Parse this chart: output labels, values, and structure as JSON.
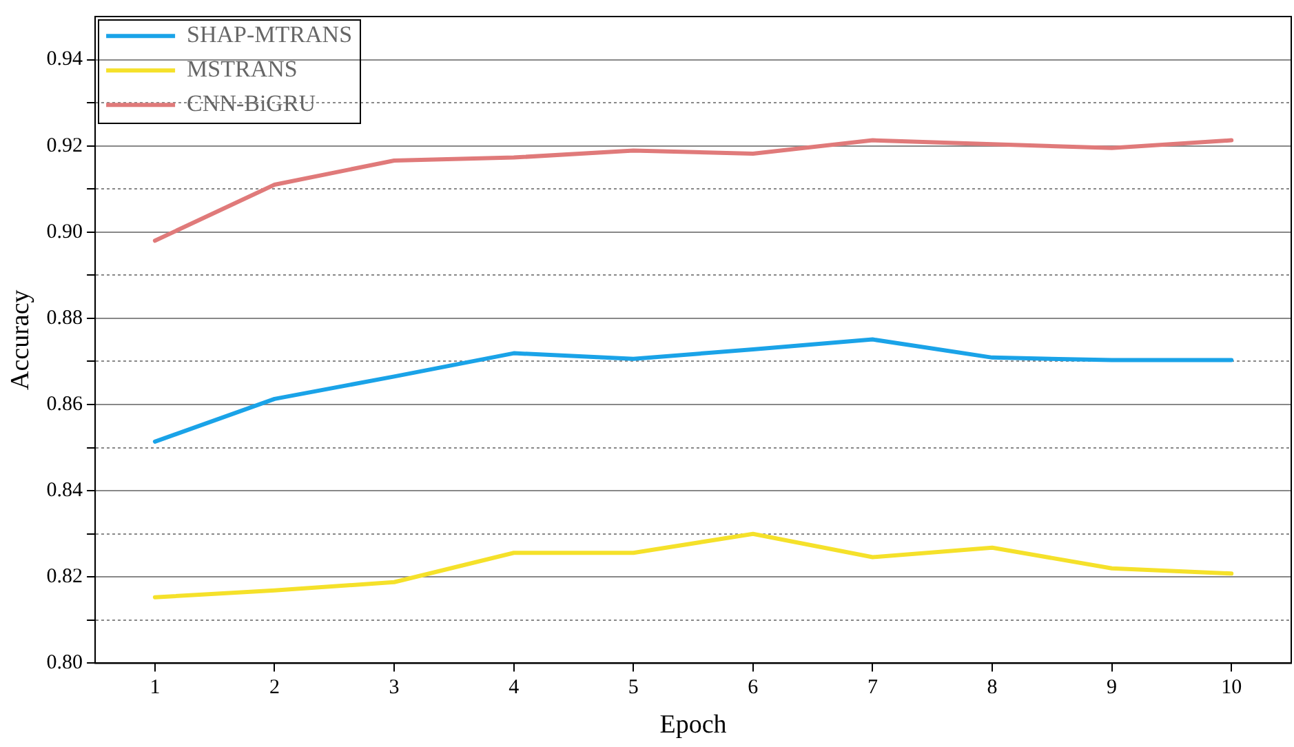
{
  "chart_data": {
    "type": "line",
    "xlabel": "Epoch",
    "ylabel": "Accuracy",
    "x": [
      1,
      2,
      3,
      4,
      5,
      6,
      7,
      8,
      9,
      10
    ],
    "series": [
      {
        "name": "SHAP-MTRANS",
        "color": "#1aa3e8",
        "values": [
          0.8514,
          0.8613,
          0.8665,
          0.8719,
          0.8706,
          0.8728,
          0.8751,
          0.8709,
          0.8703,
          0.8703
        ]
      },
      {
        "name": "MSTRANS",
        "color": "#f5e12a",
        "values": [
          0.8153,
          0.8169,
          0.8188,
          0.8256,
          0.8256,
          0.83,
          0.8246,
          0.8268,
          0.822,
          0.8208
        ]
      },
      {
        "name": "CNN-BiGRU",
        "color": "#e07a7a",
        "values": [
          0.898,
          0.911,
          0.9166,
          0.9173,
          0.9189,
          0.9182,
          0.9213,
          0.9204,
          0.9195,
          0.9213
        ]
      }
    ],
    "xlim": [
      0.5,
      10.5
    ],
    "xticks": [
      1,
      2,
      3,
      4,
      5,
      6,
      7,
      8,
      9,
      10
    ],
    "ylim": [
      0.8,
      0.95
    ],
    "yticks": [
      {
        "value": 0.8,
        "label": "0.80"
      },
      {
        "value": 0.81,
        "label": null
      },
      {
        "value": 0.82,
        "label": "0.82"
      },
      {
        "value": 0.83,
        "label": null
      },
      {
        "value": 0.84,
        "label": "0.84"
      },
      {
        "value": 0.85,
        "label": null
      },
      {
        "value": 0.86,
        "label": "0.86"
      },
      {
        "value": 0.87,
        "label": null
      },
      {
        "value": 0.88,
        "label": "0.88"
      },
      {
        "value": 0.89,
        "label": null
      },
      {
        "value": 0.9,
        "label": "0.90"
      },
      {
        "value": 0.91,
        "label": null
      },
      {
        "value": 0.92,
        "label": "0.92"
      },
      {
        "value": 0.93,
        "label": null
      },
      {
        "value": 0.94,
        "label": "0.94"
      }
    ],
    "grid": "y",
    "legend": "top left",
    "marker": "none",
    "line_style": "solid"
  }
}
